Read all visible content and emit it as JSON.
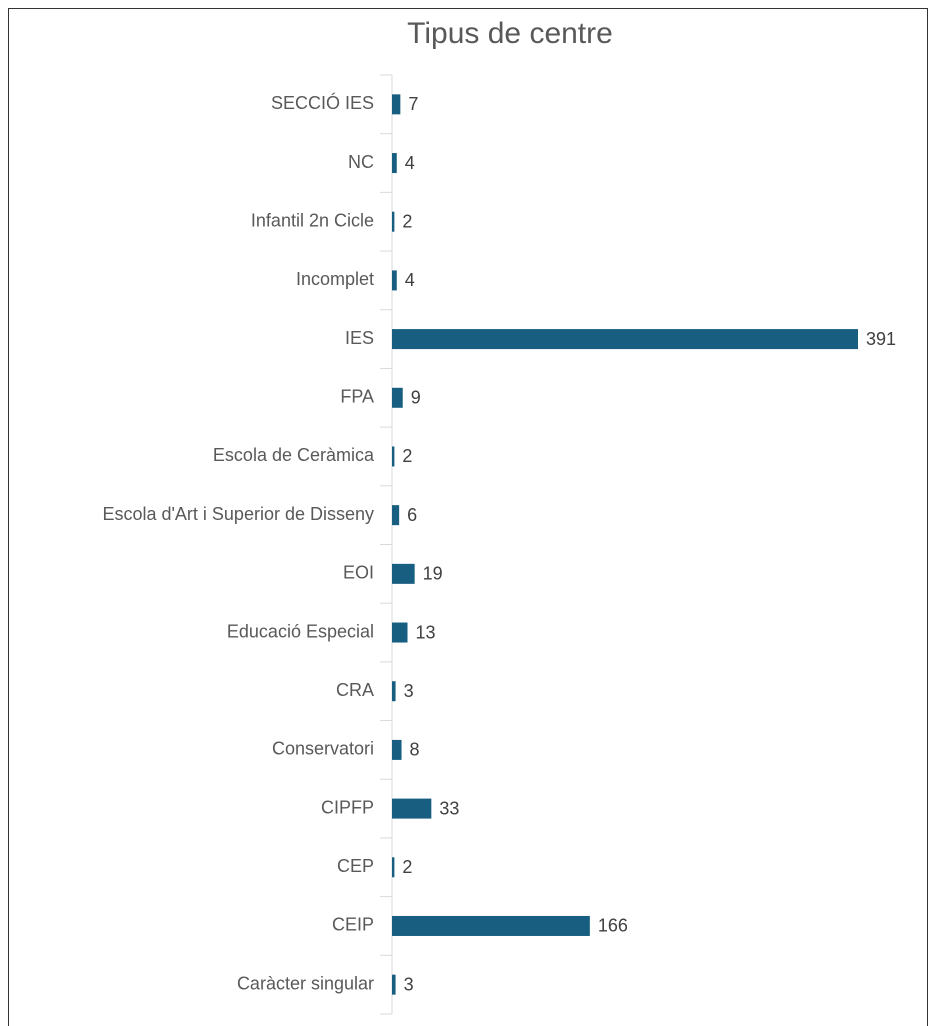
{
  "chart_data": {
    "type": "bar",
    "orientation": "horizontal",
    "title": "Tipus de centre",
    "categories": [
      "SECCIÓ IES",
      "NC",
      "Infantil 2n Cicle",
      "Incomplet",
      "IES",
      "FPA",
      "Escola de Ceràmica",
      "Escola d'Art i Superior de Disseny",
      "EOI",
      "Educació Especial",
      "CRA",
      "Conservatori",
      "CIPFP",
      "CEP",
      "CEIP",
      "Caràcter singular"
    ],
    "values": [
      7,
      4,
      2,
      4,
      391,
      9,
      2,
      6,
      19,
      13,
      3,
      8,
      33,
      2,
      166,
      3
    ],
    "color": "#175e80"
  }
}
